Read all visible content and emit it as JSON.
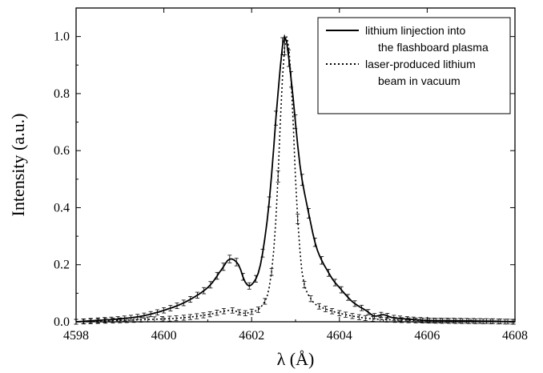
{
  "chart_data": {
    "type": "line",
    "xlabel": "λ (Å)",
    "ylabel": "Intensity (a.u.)",
    "xlim": [
      4598,
      4608
    ],
    "ylim": [
      0,
      1.1
    ],
    "x_ticks": [
      "4598",
      "4600",
      "4602",
      "4604",
      "4606",
      "4608"
    ],
    "y_ticks": [
      "0.0",
      "0.2",
      "0.4",
      "0.6",
      "0.8",
      "1.0"
    ],
    "legend_position": "top-right",
    "legend": [
      {
        "lines": [
          "lithium linjection into",
          "the flashboard plasma"
        ],
        "style": "solid"
      },
      {
        "lines": [
          "laser-produced lithium",
          "beam in vacuum"
        ],
        "style": "dotted"
      }
    ],
    "series": [
      {
        "name": "lithium linjection into the flashboard plasma",
        "style": "solid",
        "x": [
          4598.0,
          4598.5,
          4599.0,
          4599.5,
          4600.0,
          4600.5,
          4601.0,
          4601.3,
          4601.5,
          4601.7,
          4601.85,
          4602.0,
          4602.2,
          4602.4,
          4602.6,
          4602.75,
          4602.9,
          4603.1,
          4603.3,
          4603.5,
          4603.8,
          4604.0,
          4604.3,
          4604.6,
          4604.8,
          4605.0,
          4605.2,
          4605.5,
          4606.0,
          4606.5,
          4607.0,
          4607.5,
          4608.0
        ],
        "y": [
          0.0,
          0.005,
          0.01,
          0.02,
          0.04,
          0.07,
          0.12,
          0.18,
          0.22,
          0.2,
          0.14,
          0.13,
          0.2,
          0.42,
          0.8,
          1.0,
          0.85,
          0.55,
          0.38,
          0.25,
          0.16,
          0.12,
          0.07,
          0.04,
          0.02,
          0.025,
          0.015,
          0.01,
          0.005,
          0.004,
          0.003,
          0.002,
          0.0
        ]
      },
      {
        "name": "laser-produced lithium beam in vacuum",
        "style": "dotted",
        "x": [
          4598.0,
          4599.0,
          4600.0,
          4600.5,
          4601.0,
          4601.5,
          4601.8,
          4602.0,
          4602.2,
          4602.4,
          4602.55,
          4602.7,
          4602.8,
          4602.9,
          4603.0,
          4603.1,
          4603.2,
          4603.4,
          4603.6,
          4604.0,
          4604.5,
          4605.0,
          4606.0,
          4607.0,
          4608.0
        ],
        "y": [
          0.0,
          0.005,
          0.01,
          0.015,
          0.025,
          0.04,
          0.03,
          0.035,
          0.05,
          0.12,
          0.35,
          0.85,
          1.0,
          0.85,
          0.5,
          0.25,
          0.13,
          0.07,
          0.05,
          0.03,
          0.015,
          0.008,
          0.004,
          0.002,
          0.0
        ]
      }
    ]
  }
}
